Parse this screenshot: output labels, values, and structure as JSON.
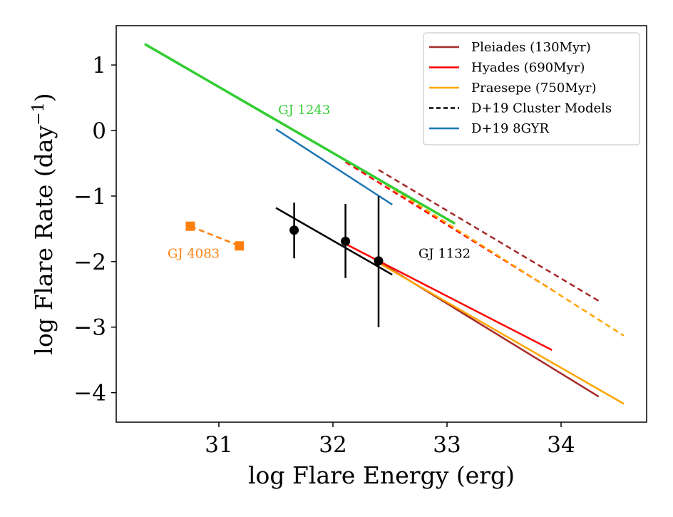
{
  "chart_data": {
    "type": "line",
    "xlabel": "log Flare Energy (erg)",
    "ylabel_main": "log Flare Rate (day",
    "ylabel_sup": "−1",
    "ylabel_close": ")",
    "xlim": [
      30.1,
      34.75
    ],
    "ylim": [
      -4.45,
      1.6
    ],
    "xticks": [
      31,
      32,
      33,
      34
    ],
    "xtick_labels": [
      "31",
      "32",
      "33",
      "34"
    ],
    "yticks": [
      1,
      0,
      -1,
      -2,
      -3,
      -4
    ],
    "ytick_labels": [
      "1",
      "0",
      "−1",
      "−2",
      "−3",
      "−4"
    ],
    "legend_position": "top-right",
    "series": [
      {
        "name": "Pleiades (130Myr)",
        "color": "#a52a2a",
        "dash": false,
        "width": 2.5,
        "legend": true,
        "x": [
          32.4,
          34.33
        ],
        "y": [
          -2.0,
          -4.06
        ]
      },
      {
        "color": "#a52a2a",
        "dash": true,
        "width": 2.5,
        "legend": false,
        "x": [
          32.4,
          34.33
        ],
        "y": [
          -0.6,
          -2.6
        ]
      },
      {
        "name": "Hyades (690Myr)",
        "color": "#ff0000",
        "dash": false,
        "width": 2.5,
        "legend": true,
        "x": [
          32.11,
          33.92
        ],
        "y": [
          -1.73,
          -3.35
        ]
      },
      {
        "color": "#ff0000",
        "dash": true,
        "width": 2.5,
        "legend": false,
        "x": [
          32.11,
          33.92
        ],
        "y": [
          -0.48,
          -2.43
        ]
      },
      {
        "name": "Praesepe (750Myr)",
        "color": "#ffa500",
        "dash": false,
        "width": 2.5,
        "legend": true,
        "x": [
          32.4,
          34.55
        ],
        "y": [
          -2.02,
          -4.17
        ]
      },
      {
        "color": "#ffa500",
        "dash": true,
        "width": 2.5,
        "legend": false,
        "x": [
          32.4,
          34.55
        ],
        "y": [
          -0.75,
          -3.13
        ]
      },
      {
        "name": "D+19 Cluster Models",
        "color": "#000000",
        "dash": true,
        "width": 2.5,
        "legend": true,
        "legend_only": true,
        "x": [],
        "y": []
      },
      {
        "name": "D+19 8GYR",
        "color": "#1f77b4",
        "dash": false,
        "width": 2.5,
        "legend": true,
        "x": [
          31.5,
          32.52
        ],
        "y": [
          0.02,
          -1.13
        ]
      },
      {
        "color": "#32cd32",
        "dash": false,
        "width": 3.5,
        "legend": false,
        "x": [
          30.35,
          33.07
        ],
        "y": [
          1.32,
          -1.42
        ]
      },
      {
        "color": "#000000",
        "dash": false,
        "width": 2.5,
        "legend": false,
        "x": [
          31.5,
          32.52
        ],
        "y": [
          -1.18,
          -2.2
        ]
      },
      {
        "color": "#ff7f0e",
        "dash": true,
        "width": 2.5,
        "legend": false,
        "x": [
          30.75,
          31.18
        ],
        "y": [
          -1.46,
          -1.76
        ]
      }
    ],
    "points": [
      {
        "marker": "circle",
        "color": "#000000",
        "x": 31.66,
        "y": -1.52,
        "yerr_low": -1.95,
        "yerr_high": -1.1
      },
      {
        "marker": "circle",
        "color": "#000000",
        "x": 32.11,
        "y": -1.69,
        "yerr_low": -2.25,
        "yerr_high": -1.12
      },
      {
        "marker": "circle",
        "color": "#000000",
        "x": 32.4,
        "y": -1.99,
        "yerr_low": -3.0,
        "yerr_high": -1.0
      },
      {
        "marker": "square",
        "color": "#ff7f0e",
        "x": 30.75,
        "y": -1.46
      },
      {
        "marker": "square",
        "color": "#ff7f0e",
        "x": 31.18,
        "y": -1.76
      }
    ],
    "annotations": [
      {
        "text": "GJ 1243",
        "color": "#32cd32",
        "x": 31.52,
        "y": 0.25
      },
      {
        "text": "GJ 4083",
        "color": "#ff7f0e",
        "x": 30.55,
        "y": -1.94
      },
      {
        "text": "GJ 1132",
        "color": "#000000",
        "x": 32.75,
        "y": -1.94
      }
    ]
  }
}
